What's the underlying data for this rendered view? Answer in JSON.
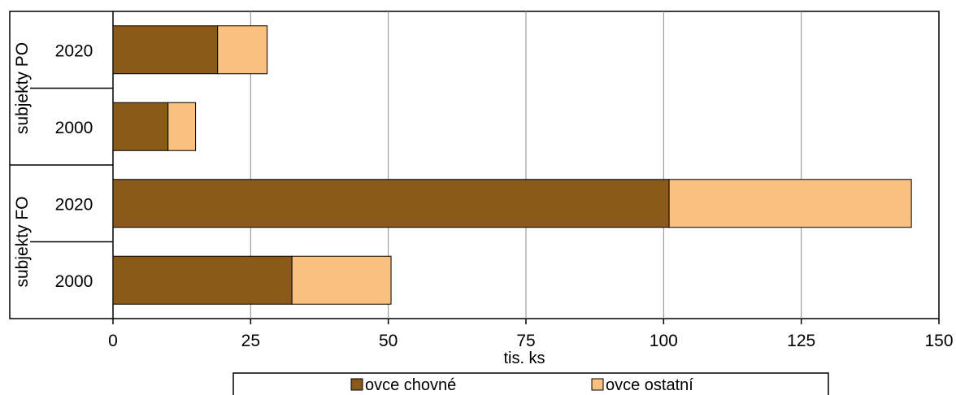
{
  "chart_data": {
    "type": "bar",
    "orientation": "horizontal",
    "stacked": true,
    "groups": [
      {
        "label": "subjekty PO",
        "categories": [
          "2020",
          "2000"
        ]
      },
      {
        "label": "subjekty FO",
        "categories": [
          "2020",
          "2000"
        ]
      }
    ],
    "categories": [
      "subjekty PO 2020",
      "subjekty PO 2000",
      "subjekty FO 2020",
      "subjekty FO 2000"
    ],
    "category_labels": [
      "2020",
      "2000",
      "2020",
      "2000"
    ],
    "series": [
      {
        "name": "ovce chovné",
        "color": "#8B5A1A",
        "values": [
          19,
          10,
          101,
          32.5
        ]
      },
      {
        "name": "ovce ostatní",
        "color": "#FAC080",
        "values": [
          9,
          5,
          44,
          18
        ]
      }
    ],
    "xlabel": "tis. ks",
    "ylabel": "",
    "xlim": [
      0,
      150
    ],
    "xticks": [
      0,
      25,
      50,
      75,
      100,
      125,
      150
    ],
    "grid": "vertical",
    "legend_position": "bottom"
  }
}
